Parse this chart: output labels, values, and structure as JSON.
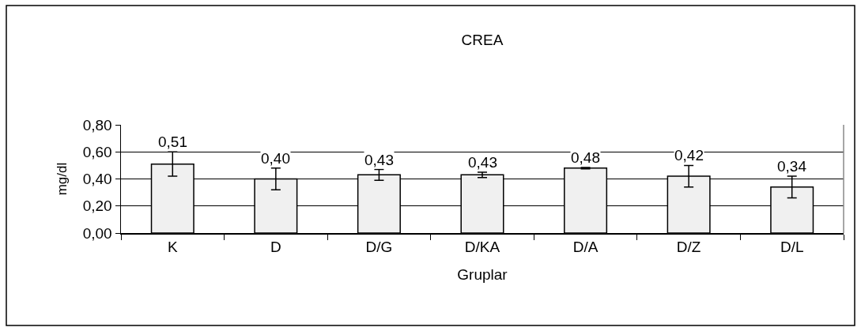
{
  "chart_data": {
    "type": "bar",
    "title": "CREA",
    "xlabel": "Gruplar",
    "ylabel": "mg/dl",
    "categories": [
      "K",
      "D",
      "D/G",
      "D/KA",
      "D/A",
      "D/Z",
      "D/L"
    ],
    "values": [
      0.51,
      0.4,
      0.43,
      0.43,
      0.48,
      0.42,
      0.34
    ],
    "value_labels": [
      "0,51",
      "0,40",
      "0,43",
      "0,43",
      "0,48",
      "0,42",
      "0,34"
    ],
    "errors": [
      0.09,
      0.08,
      0.04,
      0.02,
      0.005,
      0.08,
      0.08
    ],
    "color": "#f0f0f0",
    "ylim": [
      0,
      0.8
    ],
    "yticks": [
      {
        "value": 0,
        "label": "0,00"
      },
      {
        "value": 0.2,
        "label": "0,20"
      },
      {
        "value": 0.4,
        "label": "0,40"
      },
      {
        "value": 0.6,
        "label": "0,60"
      },
      {
        "value": 0.8,
        "label": "0,80"
      }
    ],
    "grid": "y",
    "legend": false
  }
}
